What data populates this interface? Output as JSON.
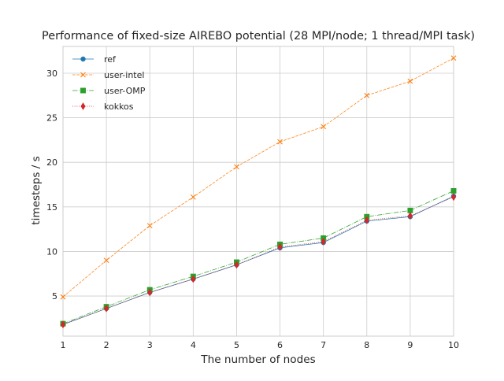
{
  "chart_data": {
    "type": "line",
    "title": "Performance of fixed-size AIREBO potential (28 MPI/node; 1 thread/MPI task)",
    "xlabel": "The number of nodes",
    "ylabel": "timesteps / s",
    "x": [
      1,
      2,
      3,
      4,
      5,
      6,
      7,
      8,
      9,
      10
    ],
    "xlim": [
      1,
      10
    ],
    "ylim": [
      0.5,
      33
    ],
    "xticks": [
      1,
      2,
      3,
      4,
      5,
      6,
      7,
      8,
      9,
      10
    ],
    "yticks": [
      5,
      10,
      15,
      20,
      25,
      30
    ],
    "grid": true,
    "legend_position": "top-left",
    "series": [
      {
        "name": "ref",
        "color": "#1f77b4",
        "marker": "circle",
        "line": "solid",
        "values": [
          1.8,
          3.6,
          5.4,
          6.9,
          8.5,
          10.4,
          11.0,
          13.4,
          13.9,
          16.2
        ]
      },
      {
        "name": "user-intel",
        "color": "#ff7f0e",
        "marker": "x",
        "line": "dashed",
        "values": [
          4.9,
          9.0,
          12.9,
          16.1,
          19.5,
          22.3,
          24.0,
          27.5,
          29.1,
          31.7
        ]
      },
      {
        "name": "user-OMP",
        "color": "#2ca02c",
        "marker": "square",
        "line": "dashdot",
        "values": [
          1.9,
          3.8,
          5.7,
          7.2,
          8.8,
          10.8,
          11.5,
          13.9,
          14.6,
          16.8
        ]
      },
      {
        "name": "kokkos",
        "color": "#d62728",
        "marker": "diamond",
        "line": "dotted",
        "values": [
          1.8,
          3.6,
          5.4,
          6.9,
          8.5,
          10.5,
          11.1,
          13.5,
          14.0,
          16.1
        ]
      }
    ]
  }
}
